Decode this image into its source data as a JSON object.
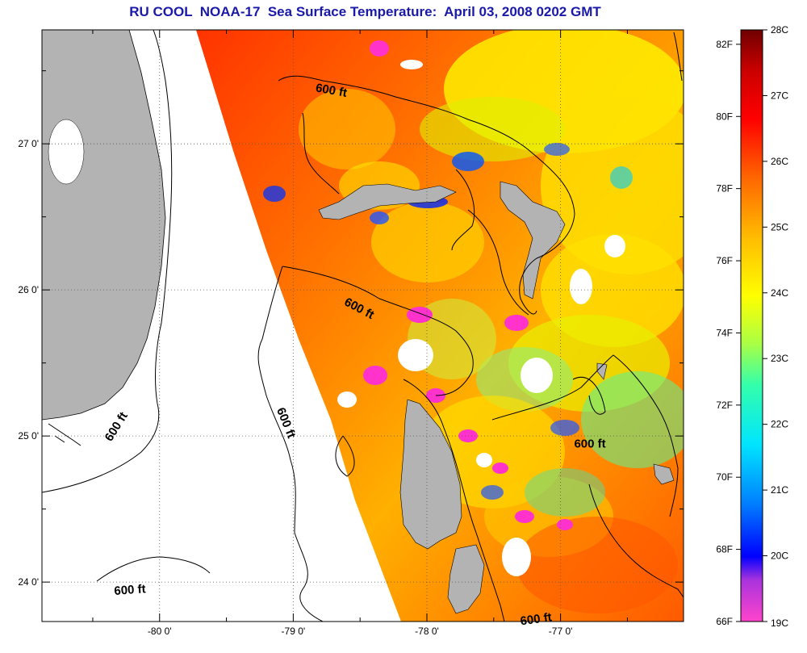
{
  "title": "RU COOL  NOAA-17  Sea Surface Temperature:  April 03, 2008 0202 GMT",
  "map": {
    "lon_range": [
      -80.88,
      -76.08
    ],
    "lat_range": [
      23.73,
      27.78
    ],
    "lat_ticks": [
      {
        "value": 24,
        "label": "24 0'"
      },
      {
        "value": 25,
        "label": "25 0'"
      },
      {
        "value": 26,
        "label": "26 0'"
      },
      {
        "value": 27,
        "label": "27 0'"
      }
    ],
    "lon_ticks": [
      {
        "value": -80,
        "label": "-80 0'"
      },
      {
        "value": -79,
        "label": "-79 0'"
      },
      {
        "value": -78,
        "label": "-78 0'"
      },
      {
        "value": -77,
        "label": "-77 0'"
      }
    ],
    "minor_lon_ticks": [
      -80.5,
      -79.5,
      -78.5,
      -77.5,
      -76.5
    ],
    "minor_lat_ticks": [
      24.5,
      25.5,
      26.5,
      27.5
    ],
    "grid": true,
    "contour_labels": [
      {
        "text": "600 ft",
        "lon": -78.72,
        "lat": 27.34,
        "rotate": 10
      },
      {
        "text": "600 ft",
        "lon": -78.52,
        "lat": 25.85,
        "rotate": 28
      },
      {
        "text": "600 ft",
        "lon": -79.08,
        "lat": 25.08,
        "rotate": 68
      },
      {
        "text": "600 ft",
        "lon": -80.3,
        "lat": 25.05,
        "rotate": -58
      },
      {
        "text": "600 ft",
        "lon": -76.78,
        "lat": 24.92,
        "rotate": 0
      },
      {
        "text": "600 ft",
        "lon": -80.22,
        "lat": 23.92,
        "rotate": -4
      },
      {
        "text": "600 ft",
        "lon": -77.18,
        "lat": 23.72,
        "rotate": -8
      }
    ],
    "colors": {
      "land": "#b3b3b3",
      "no_data": "#ffffff",
      "contour": "#000000"
    }
  },
  "colorbar": {
    "left_labels": [
      "82F",
      "80F",
      "78F",
      "76F",
      "74F",
      "72F",
      "70F",
      "68F",
      "66F"
    ],
    "right_labels": [
      "28C",
      "27C",
      "26C",
      "25C",
      "24C",
      "23C",
      "22C",
      "21C",
      "20C",
      "19C"
    ],
    "fahrenheit_range": [
      66,
      82.4
    ],
    "celsius_range": [
      19,
      28
    ],
    "colors": [
      "#ff44cc",
      "#7a2fe0",
      "#0000ff",
      "#0080ff",
      "#00e5ff",
      "#33ffaa",
      "#ccff33",
      "#ffff00",
      "#ffaa00",
      "#ff5500",
      "#ff0000",
      "#cc0000",
      "#7a0000"
    ]
  }
}
